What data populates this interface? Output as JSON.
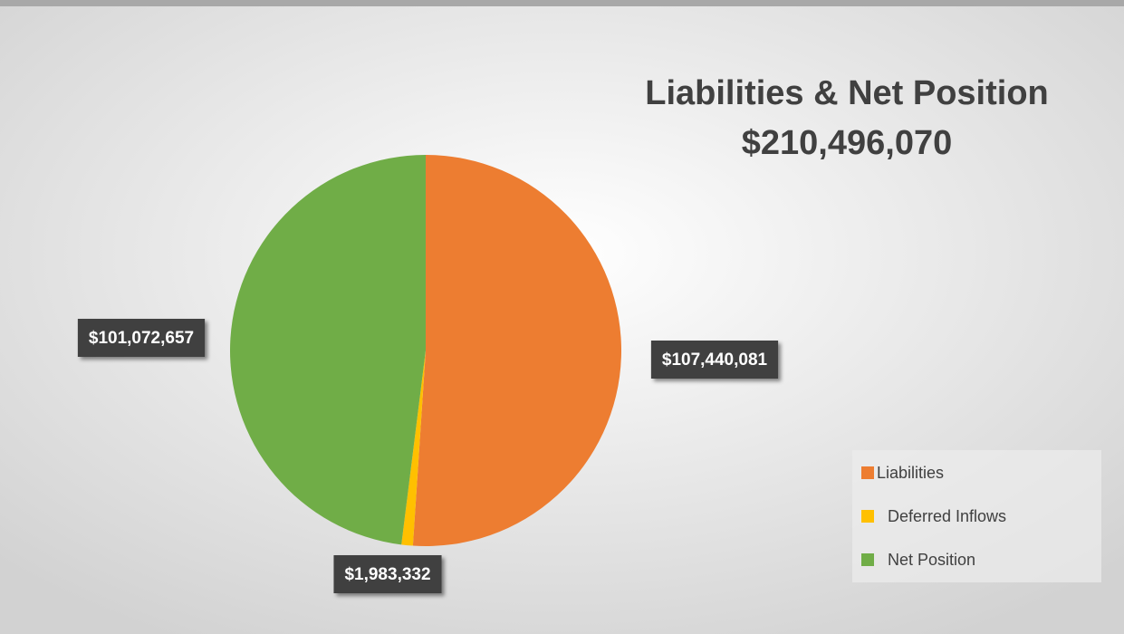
{
  "chart_data": {
    "type": "pie",
    "title": "Liabilities & Net Position",
    "subtitle": "$210,496,070",
    "categories": [
      "Liabilities",
      "Deferred Inflows",
      "Net Position"
    ],
    "values": [
      107440081,
      1983332,
      101072657
    ],
    "value_labels": [
      "$107,440,081",
      "$1,983,332",
      "$101,072,657"
    ],
    "colors": [
      "#ed7d31",
      "#ffc000",
      "#70ad47"
    ],
    "legend": "right"
  }
}
